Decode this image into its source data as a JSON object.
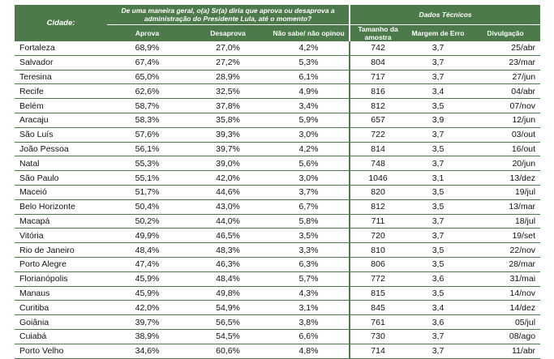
{
  "header": {
    "city": "Cidade:",
    "question": "De uma maneira geral, o(a) Sr(a) diria que aprova ou desaprova a administração do Presidente Lula, até o momento?",
    "tech": "Dados Técnicos",
    "col_aprova": "Aprova",
    "col_desaprova": "Desaprova",
    "col_nao_sabe": "Não sabe/ não opinou",
    "col_tamanho": "Tamanho da amostra",
    "col_margem": "Margem de Erro",
    "col_divulgacao": "Divulgação"
  },
  "rows": [
    {
      "city": "Fortaleza",
      "aprova": "68,9%",
      "desaprova": "27,0%",
      "nao_sabe": "4,2%",
      "amostra": "742",
      "margem": "3,7",
      "divulgacao": "25/abr"
    },
    {
      "city": "Salvador",
      "aprova": "67,4%",
      "desaprova": "27,2%",
      "nao_sabe": "5,3%",
      "amostra": "804",
      "margem": "3,7",
      "divulgacao": "23/mar"
    },
    {
      "city": "Teresina",
      "aprova": "65,0%",
      "desaprova": "28,9%",
      "nao_sabe": "6,1%",
      "amostra": "717",
      "margem": "3,7",
      "divulgacao": "27/jun"
    },
    {
      "city": "Recife",
      "aprova": "62,6%",
      "desaprova": "32,5%",
      "nao_sabe": "4,9%",
      "amostra": "816",
      "margem": "3,4",
      "divulgacao": "04/abr"
    },
    {
      "city": "Belém",
      "aprova": "58,7%",
      "desaprova": "37,8%",
      "nao_sabe": "3,4%",
      "amostra": "812",
      "margem": "3,5",
      "divulgacao": "07/nov"
    },
    {
      "city": "Aracaju",
      "aprova": "58,3%",
      "desaprova": "35,8%",
      "nao_sabe": "5,9%",
      "amostra": "657",
      "margem": "3,9",
      "divulgacao": "12/jun"
    },
    {
      "city": "São Luís",
      "aprova": "57,6%",
      "desaprova": "39,3%",
      "nao_sabe": "3,0%",
      "amostra": "722",
      "margem": "3,7",
      "divulgacao": "03/out"
    },
    {
      "city": "João Pessoa",
      "aprova": "56,1%",
      "desaprova": "39,7%",
      "nao_sabe": "4,2%",
      "amostra": "814",
      "margem": "3,5",
      "divulgacao": "16/out"
    },
    {
      "city": "Natal",
      "aprova": "55,3%",
      "desaprova": "39,0%",
      "nao_sabe": "5,6%",
      "amostra": "748",
      "margem": "3,7",
      "divulgacao": "20/jun"
    },
    {
      "city": "São Paulo",
      "aprova": "55,1%",
      "desaprova": "42,0%",
      "nao_sabe": "3,0%",
      "amostra": "1046",
      "margem": "3,1",
      "divulgacao": "13/dez"
    },
    {
      "city": "Maceió",
      "aprova": "51,7%",
      "desaprova": "44,6%",
      "nao_sabe": "3,7%",
      "amostra": "820",
      "margem": "3,5",
      "divulgacao": "19/jul"
    },
    {
      "city": "Belo Horizonte",
      "aprova": "50,4%",
      "desaprova": "43,0%",
      "nao_sabe": "6,7%",
      "amostra": "812",
      "margem": "3,5",
      "divulgacao": "13/mar"
    },
    {
      "city": "Macapá",
      "aprova": "50,2%",
      "desaprova": "44,0%",
      "nao_sabe": "5,8%",
      "amostra": "711",
      "margem": "3,7",
      "divulgacao": "18/jul"
    },
    {
      "city": "Vitória",
      "aprova": "49,9%",
      "desaprova": "46,5%",
      "nao_sabe": "3,5%",
      "amostra": "720",
      "margem": "3,7",
      "divulgacao": "19/set"
    },
    {
      "city": "Rio de Janeiro",
      "aprova": "48,4%",
      "desaprova": "48,3%",
      "nao_sabe": "3,3%",
      "amostra": "810",
      "margem": "3,5",
      "divulgacao": "22/nov"
    },
    {
      "city": "Porto Alegre",
      "aprova": "47,4%",
      "desaprova": "46,3%",
      "nao_sabe": "6,3%",
      "amostra": "806",
      "margem": "3,5",
      "divulgacao": "28/mar"
    },
    {
      "city": "Florianópolis",
      "aprova": "45,9%",
      "desaprova": "48,4%",
      "nao_sabe": "5,7%",
      "amostra": "772",
      "margem": "3,6",
      "divulgacao": "31/mai"
    },
    {
      "city": "Manaus",
      "aprova": "45,9%",
      "desaprova": "49,8%",
      "nao_sabe": "4,3%",
      "amostra": "815",
      "margem": "3,5",
      "divulgacao": "14/nov"
    },
    {
      "city": "Curitiba",
      "aprova": "42,0%",
      "desaprova": "54,9%",
      "nao_sabe": "3,1%",
      "amostra": "845",
      "margem": "3,4",
      "divulgacao": "14/dez"
    },
    {
      "city": "Goiânia",
      "aprova": "39,7%",
      "desaprova": "56,5%",
      "nao_sabe": "3,8%",
      "amostra": "761",
      "margem": "3,6",
      "divulgacao": "05/jul"
    },
    {
      "city": "Cuiabá",
      "aprova": "38,9%",
      "desaprova": "54,5%",
      "nao_sabe": "6,6%",
      "amostra": "730",
      "margem": "3,7",
      "divulgacao": "08/ago"
    },
    {
      "city": "Porto Velho",
      "aprova": "34,6%",
      "desaprova": "60,6%",
      "nao_sabe": "4,8%",
      "amostra": "714",
      "margem": "3,7",
      "divulgacao": "11/abr"
    }
  ]
}
